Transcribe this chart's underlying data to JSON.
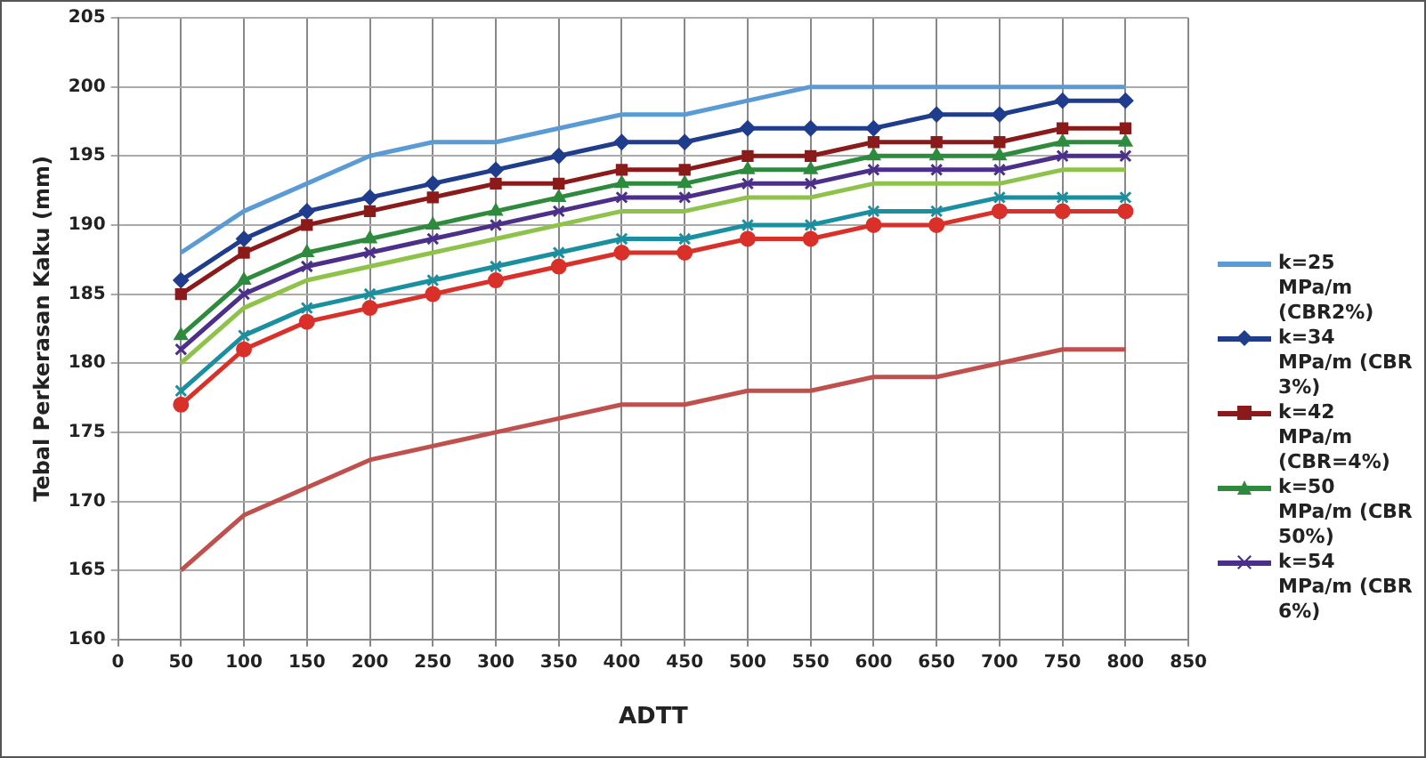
{
  "chart_data": {
    "type": "line",
    "xlabel": "ADTT",
    "ylabel": "Tebal Perkerasan Kaku (mm)",
    "x": [
      50,
      100,
      150,
      200,
      250,
      300,
      350,
      400,
      450,
      500,
      550,
      600,
      650,
      700,
      750,
      800
    ],
    "xlim": [
      0,
      850
    ],
    "xticks": [
      0,
      50,
      100,
      150,
      200,
      250,
      300,
      350,
      400,
      450,
      500,
      550,
      600,
      650,
      700,
      750,
      800,
      850
    ],
    "ylim": [
      160,
      205
    ],
    "yticks": [
      160,
      165,
      170,
      175,
      180,
      185,
      190,
      195,
      200,
      205
    ],
    "grid": true,
    "legend": "right",
    "line_style": "solid",
    "series": [
      {
        "name": "k=25 MPa/m (CBR2%)",
        "color": "#5b9bd5",
        "marker": "none",
        "values": [
          188,
          191,
          193,
          195,
          196,
          196,
          197,
          198,
          198,
          199,
          200,
          200,
          200,
          200,
          200,
          200
        ]
      },
      {
        "name": "k=34 MPa/m (CBR 3%)",
        "color": "#1f3d8c",
        "marker": "diamond",
        "values": [
          186,
          189,
          191,
          192,
          193,
          194,
          195,
          196,
          196,
          197,
          197,
          197,
          198,
          198,
          199,
          199
        ]
      },
      {
        "name": "k=42 MPa/m (CBR=4%)",
        "color": "#8b1a1a",
        "marker": "square",
        "values": [
          185,
          188,
          190,
          191,
          192,
          193,
          193,
          194,
          194,
          195,
          195,
          196,
          196,
          196,
          197,
          197
        ]
      },
      {
        "name": "k=50 MPa/m (CBR 50%)",
        "color": "#2e8b3e",
        "marker": "triangle",
        "values": [
          182,
          186,
          188,
          189,
          190,
          191,
          192,
          193,
          193,
          194,
          194,
          195,
          195,
          195,
          196,
          196
        ]
      },
      {
        "name": "k=54 MPa/m (CBR 6%)",
        "color": "#4b2f8a",
        "marker": "cross",
        "values": [
          181,
          185,
          187,
          188,
          189,
          190,
          191,
          192,
          192,
          193,
          193,
          194,
          194,
          194,
          195,
          195
        ]
      },
      {
        "color": "#8fc24a",
        "marker": "none",
        "values": [
          180,
          184,
          186,
          187,
          188,
          189,
          190,
          191,
          191,
          192,
          192,
          193,
          193,
          193,
          194,
          194
        ]
      },
      {
        "color": "#1a8fa0",
        "marker": "cross",
        "values": [
          178,
          182,
          184,
          185,
          186,
          187,
          188,
          189,
          189,
          190,
          190,
          191,
          191,
          192,
          192,
          192
        ]
      },
      {
        "color": "#d9302a",
        "marker": "circle",
        "values": [
          177,
          181,
          183,
          184,
          185,
          186,
          187,
          188,
          188,
          189,
          189,
          190,
          190,
          191,
          191,
          191
        ]
      },
      {
        "color": "#c0504d",
        "marker": "none",
        "values": [
          165,
          169,
          171,
          173,
          174,
          175,
          176,
          177,
          177,
          178,
          178,
          179,
          179,
          180,
          181,
          181
        ]
      }
    ]
  }
}
